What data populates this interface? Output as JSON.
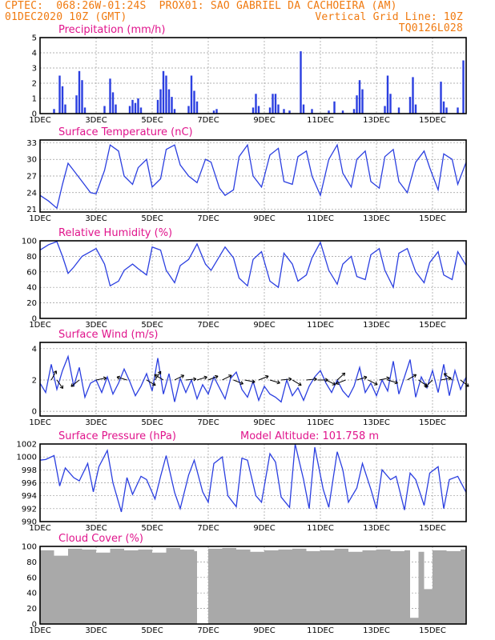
{
  "header": {
    "line1_left": "CPTEC:  068:26W-01:24S  PROX01: SAO GABRIEL DA CACHOEIRA (AM)",
    "line2_left": "01DEC2020 10Z (GMT)",
    "line2_right": "Vertical Grid Line: 10Z",
    "line3_right": "TQ0126L028"
  },
  "colors": {
    "header": "#f07a10",
    "title": "#e0148c",
    "line": "#2b3fe0",
    "bar": "#2b3fe0",
    "cloud": "#a9a9a9"
  },
  "x_labels": [
    "1DEC",
    "3DEC",
    "5DEC",
    "7DEC",
    "9DEC",
    "11DEC",
    "13DEC",
    "15DEC"
  ],
  "chart_data": [
    {
      "type": "bar",
      "title": "Precipitation (mm/h)",
      "ylim": [
        0,
        5
      ],
      "yticks": [
        0,
        1,
        2,
        3,
        4,
        5
      ],
      "x_range_days": [
        0,
        15.2
      ],
      "x": [
        0.5,
        0.7,
        0.8,
        0.9,
        1.3,
        1.4,
        1.5,
        1.6,
        2.3,
        2.5,
        2.6,
        2.7,
        3.2,
        3.3,
        3.4,
        3.5,
        3.6,
        4.2,
        4.3,
        4.4,
        4.5,
        4.6,
        4.7,
        4.8,
        5.3,
        5.4,
        5.5,
        5.6,
        6.2,
        6.3,
        7.6,
        7.7,
        7.8,
        8.2,
        8.3,
        8.4,
        8.5,
        8.7,
        8.9,
        9.3,
        9.4,
        9.7,
        10.3,
        10.5,
        10.8,
        11.2,
        11.3,
        11.4,
        11.5,
        12.3,
        12.4,
        12.5,
        12.8,
        13.2,
        13.3,
        13.4,
        14.3,
        14.4,
        14.5,
        14.9,
        15.1
      ],
      "values": [
        0.3,
        2.5,
        1.8,
        0.6,
        1.2,
        2.8,
        2.2,
        0.4,
        0.5,
        2.3,
        1.4,
        0.6,
        0.5,
        0.9,
        0.7,
        1.0,
        0.4,
        0.9,
        1.6,
        2.8,
        2.5,
        1.6,
        1.1,
        0.3,
        0.5,
        2.5,
        1.5,
        0.8,
        0.2,
        0.3,
        0.4,
        1.3,
        0.5,
        0.4,
        1.3,
        1.3,
        0.6,
        0.3,
        0.2,
        4.1,
        0.6,
        0.3,
        0.2,
        0.8,
        0.2,
        0.3,
        1.2,
        2.2,
        1.6,
        0.5,
        2.5,
        1.3,
        0.4,
        1.1,
        2.4,
        0.6,
        2.1,
        0.8,
        0.4,
        0.4,
        3.5
      ],
      "xlabel": "",
      "ylabel": ""
    },
    {
      "type": "line",
      "title": "Surface Temperature (nC)",
      "ylim": [
        20.5,
        33.5
      ],
      "yticks": [
        21,
        24,
        27,
        30,
        33
      ],
      "x_range_days": [
        0,
        15.2
      ],
      "x": [
        0,
        0.3,
        0.6,
        0.8,
        1.0,
        1.2,
        1.5,
        1.8,
        2.0,
        2.3,
        2.5,
        2.8,
        3.0,
        3.3,
        3.5,
        3.8,
        4.0,
        4.3,
        4.5,
        4.8,
        5.0,
        5.3,
        5.6,
        5.9,
        6.1,
        6.4,
        6.6,
        6.9,
        7.1,
        7.4,
        7.6,
        7.9,
        8.2,
        8.5,
        8.7,
        9.0,
        9.2,
        9.5,
        9.7,
        10.0,
        10.3,
        10.6,
        10.8,
        11.1,
        11.3,
        11.6,
        11.8,
        12.1,
        12.3,
        12.6,
        12.8,
        13.1,
        13.4,
        13.7,
        13.9,
        14.2,
        14.4,
        14.7,
        14.9,
        15.2
      ],
      "values": [
        23.5,
        22.5,
        21.2,
        25.5,
        29.3,
        28.0,
        26.0,
        24.0,
        23.8,
        28.0,
        32.6,
        31.5,
        27.0,
        25.5,
        28.5,
        30.0,
        25.0,
        26.5,
        31.8,
        32.6,
        29.0,
        27.0,
        25.8,
        30.0,
        29.5,
        24.8,
        23.5,
        24.5,
        30.5,
        32.6,
        27.0,
        25.0,
        30.8,
        32.0,
        26.0,
        25.5,
        30.5,
        31.5,
        27.0,
        23.5,
        30.0,
        32.6,
        27.5,
        25.0,
        30.0,
        31.5,
        26.0,
        24.8,
        30.5,
        31.8,
        26.0,
        24.0,
        29.5,
        31.5,
        28.5,
        24.5,
        31.0,
        30.0,
        25.5,
        29.5
      ],
      "xlabel": "",
      "ylabel": ""
    },
    {
      "type": "line",
      "title": "Relative Humidity (%)",
      "ylim": [
        0,
        100
      ],
      "yticks": [
        0,
        20,
        40,
        60,
        80,
        100
      ],
      "x_range_days": [
        0,
        15.2
      ],
      "x": [
        0,
        0.3,
        0.6,
        0.8,
        1.0,
        1.2,
        1.5,
        1.8,
        2.0,
        2.3,
        2.5,
        2.8,
        3.0,
        3.3,
        3.5,
        3.8,
        4.0,
        4.3,
        4.5,
        4.8,
        5.0,
        5.3,
        5.6,
        5.9,
        6.1,
        6.4,
        6.6,
        6.9,
        7.1,
        7.4,
        7.6,
        7.9,
        8.2,
        8.5,
        8.7,
        9.0,
        9.2,
        9.5,
        9.7,
        10.0,
        10.3,
        10.6,
        10.8,
        11.1,
        11.3,
        11.6,
        11.8,
        12.1,
        12.3,
        12.6,
        12.8,
        13.1,
        13.4,
        13.7,
        13.9,
        14.2,
        14.4,
        14.7,
        14.9,
        15.2
      ],
      "values": [
        88,
        95,
        99,
        80,
        58,
        66,
        80,
        86,
        90,
        70,
        42,
        48,
        62,
        70,
        64,
        56,
        92,
        88,
        62,
        46,
        68,
        76,
        96,
        70,
        62,
        80,
        92,
        78,
        52,
        42,
        76,
        86,
        48,
        40,
        84,
        70,
        48,
        56,
        78,
        98,
        62,
        44,
        70,
        80,
        54,
        50,
        82,
        90,
        62,
        40,
        84,
        90,
        60,
        46,
        72,
        86,
        56,
        50,
        86,
        68
      ],
      "xlabel": "",
      "ylabel": ""
    },
    {
      "type": "line",
      "title": "Surface Wind (m/s)",
      "ylim": [
        -0.3,
        4.4
      ],
      "yticks": [
        0,
        2,
        4
      ],
      "x_range_days": [
        0,
        15.2
      ],
      "x": [
        0,
        0.2,
        0.4,
        0.6,
        0.8,
        1.0,
        1.2,
        1.4,
        1.6,
        1.8,
        2.0,
        2.2,
        2.4,
        2.6,
        2.8,
        3.0,
        3.2,
        3.4,
        3.6,
        3.8,
        4.0,
        4.2,
        4.4,
        4.6,
        4.8,
        5.0,
        5.2,
        5.4,
        5.6,
        5.8,
        6.0,
        6.2,
        6.4,
        6.6,
        6.8,
        7.0,
        7.2,
        7.4,
        7.6,
        7.8,
        8.0,
        8.2,
        8.4,
        8.6,
        8.8,
        9.0,
        9.2,
        9.4,
        9.6,
        9.8,
        10.0,
        10.2,
        10.4,
        10.6,
        10.8,
        11.0,
        11.2,
        11.4,
        11.6,
        11.8,
        12.0,
        12.2,
        12.4,
        12.6,
        12.8,
        13.0,
        13.2,
        13.4,
        13.6,
        13.8,
        14.0,
        14.2,
        14.4,
        14.6,
        14.8,
        15.0,
        15.2
      ],
      "values": [
        1.8,
        1.2,
        3.0,
        1.4,
        2.6,
        3.5,
        1.6,
        2.8,
        0.9,
        1.8,
        2.0,
        1.2,
        2.2,
        1.1,
        1.8,
        2.7,
        1.9,
        1.0,
        1.6,
        2.4,
        1.3,
        3.4,
        1.1,
        2.4,
        0.6,
        2.1,
        1.2,
        2.0,
        0.8,
        1.7,
        1.1,
        2.2,
        1.5,
        0.8,
        2.1,
        2.5,
        1.4,
        0.9,
        1.9,
        0.7,
        1.6,
        1.1,
        0.9,
        0.6,
        2.0,
        1.0,
        1.5,
        0.7,
        1.6,
        2.2,
        2.6,
        1.8,
        1.2,
        2.0,
        1.3,
        0.9,
        1.6,
        2.8,
        1.2,
        1.8,
        1.0,
        2.0,
        1.3,
        3.2,
        1.1,
        2.2,
        3.3,
        0.9,
        2.2,
        1.5,
        2.6,
        1.2,
        3.0,
        1.0,
        2.6,
        1.4,
        2.2
      ],
      "arrows": [
        {
          "x": 0.4,
          "dx": 1,
          "dy": 1.8
        },
        {
          "x": 0.6,
          "dx": 1,
          "dy": -1.4
        },
        {
          "x": 1.4,
          "dx": -1,
          "dy": -0.8
        },
        {
          "x": 2.0,
          "dx": 1,
          "dy": 0.2
        },
        {
          "x": 3.1,
          "dx": -1,
          "dy": 0.3
        },
        {
          "x": 3.8,
          "dx": 1,
          "dy": -0.6
        },
        {
          "x": 4.1,
          "dx": 1,
          "dy": 1.5
        },
        {
          "x": 4.4,
          "dx": -1,
          "dy": 0.6
        },
        {
          "x": 4.8,
          "dx": 1,
          "dy": 0.5
        },
        {
          "x": 5.2,
          "dx": 1,
          "dy": 0.1
        },
        {
          "x": 5.6,
          "dx": 1,
          "dy": 0.3
        },
        {
          "x": 6.0,
          "dx": 1,
          "dy": 0.4
        },
        {
          "x": 6.5,
          "dx": 1,
          "dy": 0.5
        },
        {
          "x": 6.9,
          "dx": 1,
          "dy": -0.4
        },
        {
          "x": 7.3,
          "dx": 1,
          "dy": -0.2
        },
        {
          "x": 7.8,
          "dx": 1,
          "dy": 0.4
        },
        {
          "x": 8.2,
          "dx": 1,
          "dy": -0.3
        },
        {
          "x": 8.6,
          "dx": 1,
          "dy": 0.1
        },
        {
          "x": 9.0,
          "dx": 1,
          "dy": -0.6
        },
        {
          "x": 9.5,
          "dx": 1,
          "dy": 0.1
        },
        {
          "x": 9.9,
          "dx": 1,
          "dy": 0.0
        },
        {
          "x": 10.2,
          "dx": 1,
          "dy": -0.5
        },
        {
          "x": 10.6,
          "dx": 1,
          "dy": 0.9
        },
        {
          "x": 10.9,
          "dx": -1,
          "dy": -0.4
        },
        {
          "x": 11.3,
          "dx": 1,
          "dy": 0.3
        },
        {
          "x": 11.7,
          "dx": 1,
          "dy": -0.5
        },
        {
          "x": 12.1,
          "dx": 1,
          "dy": 0.2
        },
        {
          "x": 12.4,
          "dx": 1,
          "dy": -0.3
        },
        {
          "x": 13.1,
          "dx": 1,
          "dy": 0.6
        },
        {
          "x": 13.5,
          "dx": 1,
          "dy": -0.7
        },
        {
          "x": 14.0,
          "dx": -1,
          "dy": -1.0
        },
        {
          "x": 14.3,
          "dx": 1,
          "dy": 0.2
        },
        {
          "x": 14.7,
          "dx": -1,
          "dy": 0.8
        },
        {
          "x": 15.0,
          "dx": 1,
          "dy": -0.8
        }
      ],
      "xlabel": "",
      "ylabel": ""
    },
    {
      "type": "line",
      "title": "Surface Pressure (hPa)",
      "annotation": "Model Altitude: 101.758  m",
      "ylim": [
        990,
        1002
      ],
      "yticks": [
        990,
        992,
        994,
        996,
        998,
        1000,
        1002
      ],
      "x_range_days": [
        0,
        15.2
      ],
      "x": [
        0,
        0.2,
        0.5,
        0.7,
        0.9,
        1.2,
        1.4,
        1.7,
        1.9,
        2.1,
        2.4,
        2.6,
        2.9,
        3.1,
        3.3,
        3.6,
        3.8,
        4.1,
        4.3,
        4.5,
        4.8,
        5.0,
        5.3,
        5.5,
        5.8,
        6.0,
        6.2,
        6.5,
        6.7,
        7.0,
        7.2,
        7.4,
        7.7,
        7.9,
        8.2,
        8.4,
        8.6,
        8.9,
        9.1,
        9.4,
        9.6,
        9.8,
        10.1,
        10.3,
        10.6,
        10.8,
        11.0,
        11.3,
        11.5,
        11.8,
        12.0,
        12.2,
        12.5,
        12.7,
        13.0,
        13.2,
        13.4,
        13.7,
        13.9,
        14.2,
        14.4,
        14.6,
        14.9,
        15.2
      ],
      "values": [
        999.5,
        999.6,
        1000.2,
        995.5,
        998.3,
        996.8,
        996.3,
        999.0,
        994.6,
        998.5,
        1001.0,
        996.0,
        991.5,
        996.8,
        994.2,
        997.0,
        996.5,
        993.5,
        997.0,
        1000.2,
        994.5,
        992.0,
        997.2,
        999.5,
        994.6,
        993.0,
        999.0,
        1000.0,
        994.0,
        992.3,
        999.8,
        999.5,
        994.0,
        993.0,
        1000.5,
        999.2,
        993.8,
        992.2,
        1002.0,
        996.5,
        992.0,
        1001.5,
        995.0,
        992.2,
        1000.8,
        998.0,
        993.0,
        995.2,
        999.0,
        995.0,
        992.0,
        998.0,
        996.5,
        997.0,
        991.8,
        997.5,
        996.5,
        992.5,
        997.5,
        998.5,
        992.0,
        996.5,
        997.0,
        994.5
      ],
      "xlabel": "",
      "ylabel": ""
    },
    {
      "type": "bar",
      "title": "Cloud Cover (%)",
      "ylim": [
        0,
        100
      ],
      "yticks": [
        0,
        20,
        40,
        60,
        80,
        100
      ],
      "x_range_days": [
        0,
        15.2
      ],
      "x": [
        0,
        0.5,
        1.0,
        1.5,
        2.0,
        2.5,
        3.0,
        3.5,
        4.0,
        4.5,
        5.0,
        5.5,
        5.6,
        6.0,
        6.5,
        7.0,
        7.5,
        8.0,
        8.5,
        9.0,
        9.5,
        10.0,
        10.5,
        11.0,
        11.5,
        12.0,
        12.5,
        13.0,
        13.2,
        13.5,
        13.7,
        14.0,
        14.5,
        15.0
      ],
      "values": [
        95,
        88,
        97,
        96,
        92,
        97,
        95,
        96,
        92,
        98,
        96,
        94,
        0,
        97,
        98,
        96,
        93,
        95,
        96,
        97,
        94,
        95,
        97,
        93,
        95,
        96,
        94,
        95,
        8,
        93,
        45,
        95,
        94,
        96
      ],
      "xlabel": "",
      "ylabel": ""
    }
  ]
}
